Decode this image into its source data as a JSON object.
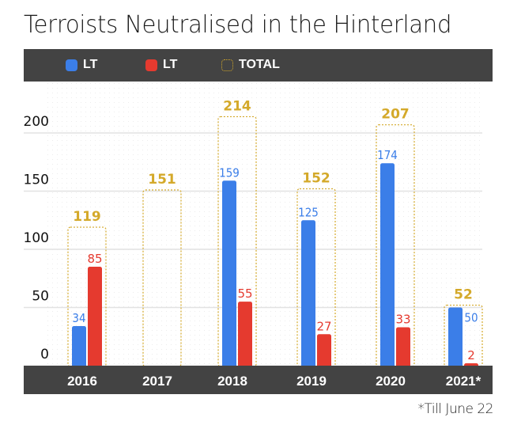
{
  "title": "Terroists Neutralised in the Hinterland",
  "footnote": "*Till June 22",
  "colors": {
    "blue": "#3b7ee8",
    "red": "#e53a2f",
    "total": "#d4a92a",
    "bar_bg": "#434343"
  },
  "legend": [
    {
      "label": "LT",
      "swatch": "blue-square-icon"
    },
    {
      "label": "LT",
      "swatch": "red-square-icon"
    },
    {
      "label": "TOTAL",
      "swatch": "dotted-outline-square-icon"
    }
  ],
  "chart_data": {
    "type": "bar",
    "title": "Terroists Neutralised in the Hinterland",
    "categories": [
      "2016",
      "2017",
      "2018",
      "2019",
      "2020",
      "2021*"
    ],
    "series": [
      {
        "name": "LT",
        "color": "#3b7ee8",
        "values": [
          34,
          null,
          159,
          125,
          174,
          50
        ]
      },
      {
        "name": "LT",
        "color": "#e53a2f",
        "values": [
          85,
          null,
          55,
          27,
          33,
          2
        ]
      },
      {
        "name": "TOTAL",
        "color": "#d4a92a",
        "style": "dotted-outline",
        "values": [
          119,
          151,
          214,
          152,
          207,
          52
        ]
      }
    ],
    "yticks": [
      0,
      50,
      100,
      150,
      200
    ],
    "ylim": [
      0,
      230
    ],
    "xlabel": "",
    "ylabel": "",
    "grid": true,
    "legend_position": "top",
    "annotation": "*Till June 22"
  }
}
